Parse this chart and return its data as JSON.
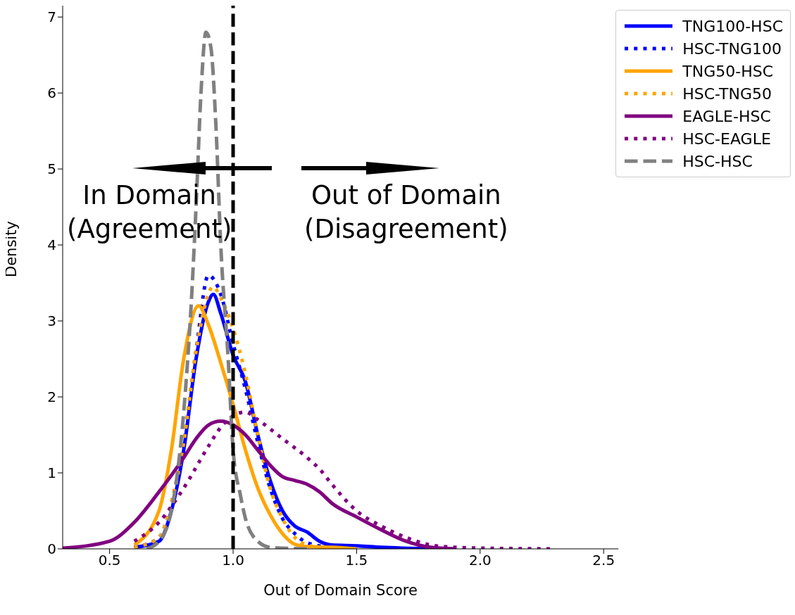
{
  "chart_data": {
    "type": "line",
    "xlabel": "Out of Domain Score",
    "ylabel": "Density",
    "xlim": [
      0.31,
      2.56
    ],
    "ylim": [
      0,
      7.15
    ],
    "xticks": [
      0.5,
      {
        "value": 1,
        "label": "1.0"
      },
      1.5,
      {
        "value": 2,
        "label": "2.0"
      },
      2.5
    ],
    "yticks": [
      0,
      1,
      2,
      3,
      4,
      5,
      6,
      7
    ],
    "grid": false,
    "legend": "top right",
    "marker": "none",
    "annotations": [
      "In Domain\n(Agreement)",
      "Out of Domain\n(Disagreement)"
    ],
    "series": [
      {
        "name": "TNG100-HSC",
        "color": "#0000ff",
        "line_style": "solid",
        "x": [
          0.6,
          0.7,
          0.75,
          0.8,
          0.85,
          0.9,
          0.92,
          0.95,
          1.0,
          1.05,
          1.1,
          1.15,
          1.2,
          1.25,
          1.3,
          1.35,
          1.4,
          1.5,
          1.6,
          1.8
        ],
        "values": [
          0.02,
          0.1,
          0.5,
          1.3,
          2.5,
          3.25,
          3.35,
          3.1,
          2.55,
          2.2,
          1.5,
          0.9,
          0.5,
          0.3,
          0.22,
          0.1,
          0.05,
          0.04,
          0.02,
          0
        ]
      },
      {
        "name": "HSC-TNG100",
        "color": "#0000ff",
        "line_style": "dotted",
        "x": [
          0.6,
          0.7,
          0.75,
          0.8,
          0.85,
          0.9,
          0.95,
          1.0,
          1.05,
          1.1,
          1.15,
          1.2,
          1.25,
          1.3,
          1.4,
          1.5
        ],
        "values": [
          0.02,
          0.15,
          0.6,
          1.4,
          2.6,
          3.6,
          3.35,
          2.7,
          2.1,
          1.4,
          0.8,
          0.4,
          0.2,
          0.08,
          0.02,
          0
        ]
      },
      {
        "name": "TNG50-HSC",
        "color": "#ffa500",
        "line_style": "solid",
        "x": [
          0.6,
          0.7,
          0.75,
          0.8,
          0.86,
          0.9,
          0.95,
          1.0,
          1.05,
          1.1,
          1.15,
          1.2,
          1.25,
          1.3,
          1.4,
          1.5
        ],
        "values": [
          0.05,
          0.5,
          1.3,
          2.5,
          3.2,
          2.95,
          2.45,
          1.9,
          1.3,
          0.8,
          0.45,
          0.2,
          0.06,
          0.03,
          0.02,
          0
        ]
      },
      {
        "name": "HSC-TNG50",
        "color": "#ffa500",
        "line_style": "dotted",
        "x": [
          0.6,
          0.7,
          0.75,
          0.8,
          0.85,
          0.92,
          0.95,
          1.0,
          1.05,
          1.1,
          1.15,
          1.2,
          1.25,
          1.3,
          1.4
        ],
        "values": [
          0.02,
          0.15,
          0.6,
          1.4,
          2.6,
          3.45,
          3.3,
          2.9,
          2.3,
          1.5,
          0.8,
          0.4,
          0.15,
          0.05,
          0
        ]
      },
      {
        "name": "EAGLE-HSC",
        "color": "#800080",
        "line_style": "solid",
        "x": [
          0.31,
          0.5,
          0.6,
          0.7,
          0.8,
          0.85,
          0.9,
          0.95,
          1.0,
          1.05,
          1.1,
          1.15,
          1.2,
          1.25,
          1.3,
          1.35,
          1.4,
          1.5,
          1.6,
          1.7,
          1.8,
          1.9
        ],
        "values": [
          0.01,
          0.1,
          0.35,
          0.75,
          1.2,
          1.45,
          1.63,
          1.68,
          1.63,
          1.5,
          1.3,
          1.1,
          0.95,
          0.9,
          0.85,
          0.75,
          0.6,
          0.42,
          0.25,
          0.1,
          0.02,
          0
        ]
      },
      {
        "name": "HSC-EAGLE",
        "color": "#800080",
        "line_style": "dotted",
        "x": [
          0.6,
          0.7,
          0.8,
          0.9,
          0.95,
          1.0,
          1.05,
          1.1,
          1.2,
          1.3,
          1.35,
          1.4,
          1.5,
          1.6,
          1.7,
          1.8,
          1.9,
          2.0,
          2.3
        ],
        "values": [
          0.1,
          0.35,
          0.8,
          1.35,
          1.6,
          1.75,
          1.8,
          1.7,
          1.45,
          1.2,
          1.05,
          0.85,
          0.5,
          0.3,
          0.15,
          0.05,
          0.02,
          0.01,
          0
        ]
      },
      {
        "name": "HSC-HSC",
        "color": "#808080",
        "line_style": "dashed",
        "x": [
          0.65,
          0.7,
          0.75,
          0.8,
          0.83,
          0.85,
          0.87,
          0.89,
          0.91,
          0.93,
          0.95,
          0.98,
          1.0,
          1.03,
          1.05,
          1.1,
          1.15,
          1.3
        ],
        "values": [
          0,
          0.1,
          0.5,
          1.8,
          3.2,
          4.5,
          6.0,
          6.8,
          6.6,
          5.6,
          4.0,
          2.5,
          1.3,
          0.7,
          0.4,
          0.1,
          0.02,
          0
        ]
      }
    ],
    "ref_lines": [
      {
        "axis": "x",
        "value": 1,
        "color": "#000000",
        "line_style": "dashed"
      }
    ]
  }
}
